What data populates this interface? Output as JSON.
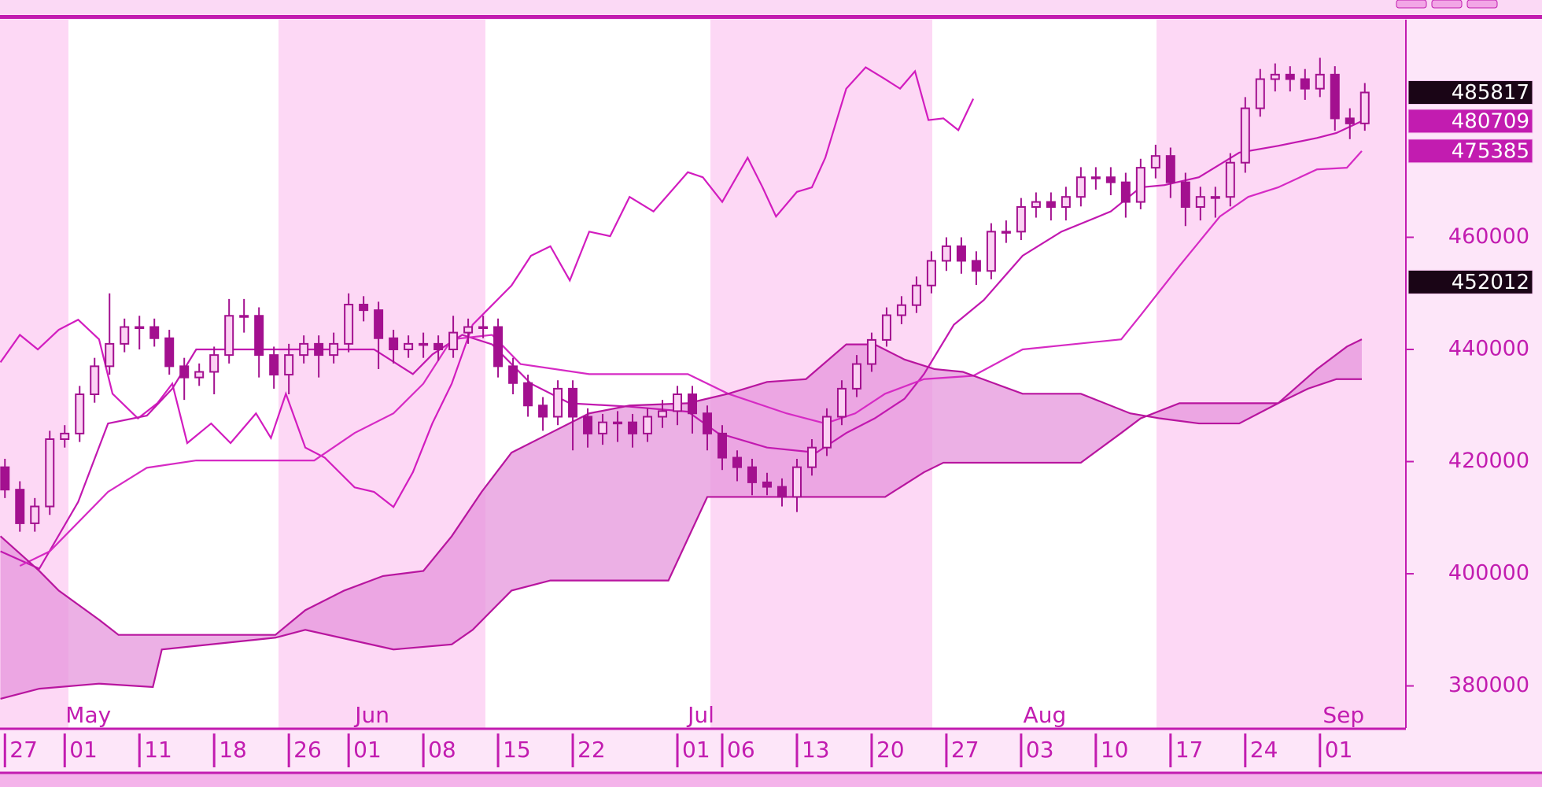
{
  "chart_data": {
    "type": "candlestick",
    "categories": [
      "27",
      null,
      null,
      null,
      "01",
      null,
      null,
      null,
      null,
      "11",
      null,
      null,
      null,
      null,
      "18",
      null,
      null,
      null,
      null,
      "26",
      null,
      null,
      null,
      "01",
      null,
      null,
      null,
      null,
      "08",
      null,
      null,
      null,
      null,
      "15",
      null,
      null,
      null,
      null,
      "22",
      null,
      null,
      null,
      null,
      null,
      null,
      "01",
      null,
      null,
      "06",
      null,
      null,
      null,
      null,
      "13",
      null,
      null,
      null,
      null,
      "20",
      null,
      null,
      null,
      null,
      "27",
      null,
      null,
      null,
      null,
      "03",
      null,
      null,
      null,
      null,
      "10",
      null,
      null,
      null,
      null,
      "17",
      null,
      null,
      null,
      null,
      "24",
      null,
      null,
      null,
      null,
      "01",
      null,
      null,
      null
    ],
    "month_labels": [
      {
        "value": 4,
        "label": "May"
      },
      {
        "value": 23,
        "label": "Jun"
      },
      {
        "value": 45,
        "label": "Jul"
      },
      {
        "value": 68,
        "label": "Aug"
      },
      {
        "value": 88,
        "label": "Sep"
      }
    ],
    "open": [
      419000,
      415000,
      409000,
      412000,
      424000,
      425000,
      432000,
      437000,
      441000,
      444000,
      444000,
      442000,
      437000,
      435000,
      436000,
      439000,
      446000,
      446000,
      439000,
      435500,
      439000,
      441000,
      439000,
      441000,
      448000,
      447000,
      442000,
      440000,
      441000,
      441000,
      440000,
      443000,
      444000,
      444000,
      437000,
      434000,
      430000,
      428000,
      433000,
      428000,
      425000,
      427000,
      427000,
      425000,
      428000,
      429000,
      432000,
      428600,
      425000,
      420700,
      419000,
      416300,
      415500,
      413700,
      419000,
      422500,
      428000,
      433000,
      437400,
      441700,
      446100,
      447900,
      451400,
      455800,
      458400,
      455800,
      454000,
      461000,
      461000,
      465400,
      466300,
      465400,
      467200,
      470700,
      470700,
      469800,
      466300,
      472400,
      474500,
      469800,
      465400,
      467200,
      467200,
      473300,
      483000,
      488200,
      489000,
      488200,
      486500,
      489000,
      481200,
      480300
    ],
    "high": [
      420500,
      416500,
      413500,
      425500,
      426500,
      433500,
      438500,
      450000,
      445500,
      446000,
      445500,
      443500,
      438500,
      437500,
      440500,
      449000,
      449000,
      447500,
      440500,
      441000,
      442500,
      442500,
      443000,
      450000,
      449500,
      448500,
      443500,
      442500,
      443000,
      442500,
      446000,
      445500,
      446000,
      445500,
      438500,
      435500,
      431500,
      434500,
      434500,
      429500,
      428500,
      429000,
      428500,
      429500,
      431000,
      433500,
      433500,
      430000,
      426500,
      422000,
      420500,
      418000,
      417000,
      420500,
      424000,
      429500,
      434500,
      439000,
      443000,
      447500,
      449500,
      453000,
      457500,
      460000,
      460000,
      457500,
      462500,
      463000,
      467000,
      468000,
      468000,
      469000,
      472500,
      472500,
      472500,
      471500,
      474000,
      476500,
      476000,
      471500,
      469000,
      469000,
      475000,
      485000,
      490000,
      491000,
      490500,
      490000,
      492000,
      490500,
      483000,
      487500
    ],
    "low": [
      413500,
      407500,
      407500,
      410500,
      422500,
      423500,
      430500,
      435500,
      439500,
      440000,
      440500,
      435500,
      431000,
      433500,
      432000,
      437500,
      443000,
      435000,
      433000,
      432000,
      437500,
      435000,
      437500,
      439500,
      445000,
      436500,
      437500,
      438500,
      438500,
      438000,
      438500,
      441000,
      442000,
      435000,
      432000,
      428000,
      425500,
      426500,
      422000,
      422500,
      423000,
      423500,
      422500,
      423500,
      426000,
      426500,
      425000,
      422000,
      418500,
      416500,
      414000,
      414000,
      412000,
      411000,
      417500,
      421000,
      426500,
      431500,
      436000,
      440500,
      444500,
      446500,
      450000,
      454000,
      453500,
      451500,
      452500,
      459000,
      459500,
      463500,
      463000,
      463000,
      465500,
      468500,
      467500,
      463500,
      465000,
      470500,
      467000,
      462000,
      463000,
      463500,
      465500,
      471500,
      481500,
      486000,
      486000,
      484500,
      485000,
      479000,
      477500,
      479000
    ],
    "close": [
      415000,
      409000,
      412000,
      424000,
      425000,
      432000,
      437000,
      441000,
      444000,
      444000,
      442000,
      437000,
      435000,
      436000,
      439000,
      446000,
      446000,
      439000,
      435500,
      439000,
      441000,
      439000,
      441000,
      448000,
      447000,
      442000,
      440000,
      441000,
      441000,
      440000,
      443000,
      444000,
      444000,
      437000,
      434000,
      430000,
      428000,
      433000,
      428000,
      425000,
      427000,
      427000,
      425000,
      428000,
      429000,
      432000,
      428600,
      425000,
      420700,
      419000,
      416300,
      415500,
      413700,
      419000,
      422500,
      428000,
      433000,
      437400,
      441700,
      446100,
      447900,
      451400,
      455800,
      458400,
      455800,
      454000,
      461000,
      461000,
      465400,
      466300,
      465400,
      467200,
      470700,
      470700,
      469800,
      466300,
      472400,
      474500,
      469800,
      465400,
      467200,
      467200,
      473300,
      483000,
      488200,
      489000,
      488200,
      486500,
      489000,
      481200,
      480300,
      485817
    ],
    "up_color": "#fbd2f3",
    "down_color": "#a3108f",
    "edge_color": "#a3108f",
    "xlim": [
      -0.33,
      93.75
    ],
    "ylim": [
      372500,
      498800
    ],
    "yticks": [
      380000,
      400000,
      420000,
      440000,
      460000
    ],
    "lines": [
      {
        "color": "#d21cbf",
        "x": [
          -0.3,
          1.0,
          2.2,
          3.6,
          4.9,
          6.3,
          7.2,
          8.9,
          10.2,
          11.2,
          12.2,
          13.8,
          15.1,
          16.8,
          17.8,
          18.8,
          20.1,
          21.4,
          23.4,
          24.7,
          26.0,
          27.3,
          28.6,
          29.9,
          31.3,
          32.6,
          33.9,
          35.2,
          36.5,
          37.8,
          39.1,
          40.5,
          41.8,
          43.4,
          45.7,
          46.7,
          48.0,
          49.7,
          50.7,
          51.6,
          53.0,
          54.0,
          54.9,
          56.3,
          57.6,
          58.9,
          59.9,
          60.9,
          61.8,
          62.8,
          63.8,
          64.8
        ],
        "values": [
          437700,
          442600,
          440000,
          443500,
          445300,
          441800,
          432100,
          427700,
          430400,
          433900,
          423300,
          426800,
          423300,
          428600,
          424200,
          432100,
          422500,
          420700,
          415400,
          414600,
          411900,
          418100,
          426800,
          433900,
          444400,
          447900,
          451400,
          456700,
          458400,
          452300,
          461000,
          460200,
          467200,
          464600,
          471600,
          470700,
          466300,
          474200,
          468900,
          463700,
          468100,
          468900,
          474200,
          486500,
          490300,
          488200,
          486500,
          489600,
          480900,
          481200,
          479100,
          484700
        ]
      },
      {
        "color": "#c218b0",
        "x": [
          -0.3,
          2.3,
          4.9,
          6.9,
          9.5,
          11.2,
          12.8,
          20.7,
          24.7,
          27.3,
          28.6,
          30.6,
          32.6,
          35.2,
          37.8,
          41.8,
          45.7,
          47.7,
          51.0,
          54.3,
          56.3,
          58.2,
          60.2,
          61.5,
          63.5,
          65.5,
          68.1,
          70.7,
          74.0,
          76.0,
          77.6,
          79.9,
          82.6,
          85.2,
          87.8,
          89.1,
          90.8
        ],
        "values": [
          404000,
          400900,
          412800,
          426800,
          428200,
          433000,
          440000,
          440000,
          440000,
          435600,
          439100,
          442600,
          440900,
          433900,
          430400,
          429800,
          428900,
          425100,
          422500,
          421600,
          425100,
          427700,
          431200,
          435600,
          444400,
          448800,
          456700,
          461000,
          464600,
          468900,
          469300,
          470700,
          475100,
          476300,
          477700,
          478600,
          480709
        ]
      },
      {
        "color": "#d62ac4",
        "x": [
          1.0,
          3.0,
          6.9,
          9.5,
          12.8,
          20.7,
          23.4,
          26.0,
          28.0,
          29.9,
          32.6,
          34.5,
          39.1,
          45.7,
          48.4,
          52.3,
          54.9,
          56.9,
          58.9,
          61.5,
          64.8,
          68.1,
          71.4,
          74.7,
          76.0,
          78.6,
          81.3,
          83.2,
          85.2,
          87.8,
          89.8,
          90.8
        ],
        "values": [
          401400,
          404000,
          414600,
          418900,
          420200,
          420200,
          425100,
          428600,
          433900,
          441800,
          442600,
          437400,
          435600,
          435600,
          432100,
          428600,
          426800,
          428600,
          432100,
          434700,
          435300,
          440000,
          440900,
          441800,
          446100,
          454900,
          463700,
          467200,
          468900,
          472100,
          472400,
          475385
        ]
      },
      {
        "color": "#b8159f",
        "x": [
          -0.3,
          2.3,
          3.6,
          6.3,
          7.6,
          18.1,
          20.1,
          22.7,
          25.3,
          28.0,
          29.9,
          31.9,
          33.9,
          36.5,
          39.1,
          41.8,
          45.7,
          48.4,
          51.0,
          53.6,
          56.3,
          58.2,
          60.2,
          62.2,
          64.1,
          68.1,
          72.0,
          75.3,
          77.3,
          79.9,
          82.6,
          85.2,
          87.8,
          89.8,
          90.8
        ],
        "values": [
          406700,
          400500,
          397000,
          391800,
          389100,
          389100,
          393500,
          397000,
          399600,
          400500,
          406700,
          414600,
          421600,
          425100,
          428600,
          430000,
          430400,
          432100,
          434200,
          434700,
          440900,
          440900,
          438200,
          436500,
          436000,
          432100,
          432100,
          428600,
          427700,
          426800,
          426800,
          430400,
          436500,
          440500,
          441800
        ]
      },
      {
        "color": "#b8159f",
        "x": [
          -0.3,
          2.3,
          6.3,
          9.9,
          10.5,
          18.1,
          20.1,
          26.0,
          29.9,
          31.3,
          33.9,
          36.5,
          44.4,
          47.0,
          58.9,
          61.5,
          62.8,
          72.0,
          74.7,
          76.0,
          78.6,
          85.2,
          87.2,
          89.1,
          90.8
        ],
        "values": [
          377700,
          379500,
          380400,
          379800,
          386500,
          388600,
          390000,
          386500,
          387400,
          390000,
          397000,
          398800,
          398800,
          413700,
          413700,
          418100,
          419800,
          419800,
          425100,
          427700,
          430400,
          430400,
          433000,
          434700,
          434700
        ]
      }
    ],
    "cloud_lines": [
      3,
      4
    ],
    "cloud_color": "#e596dc",
    "price_labels": [
      485817,
      480709,
      475385,
      452012
    ],
    "price_label_colors": [
      "#1a0516",
      "#c21cb0",
      "#c21cb0",
      "#1a0516"
    ]
  }
}
